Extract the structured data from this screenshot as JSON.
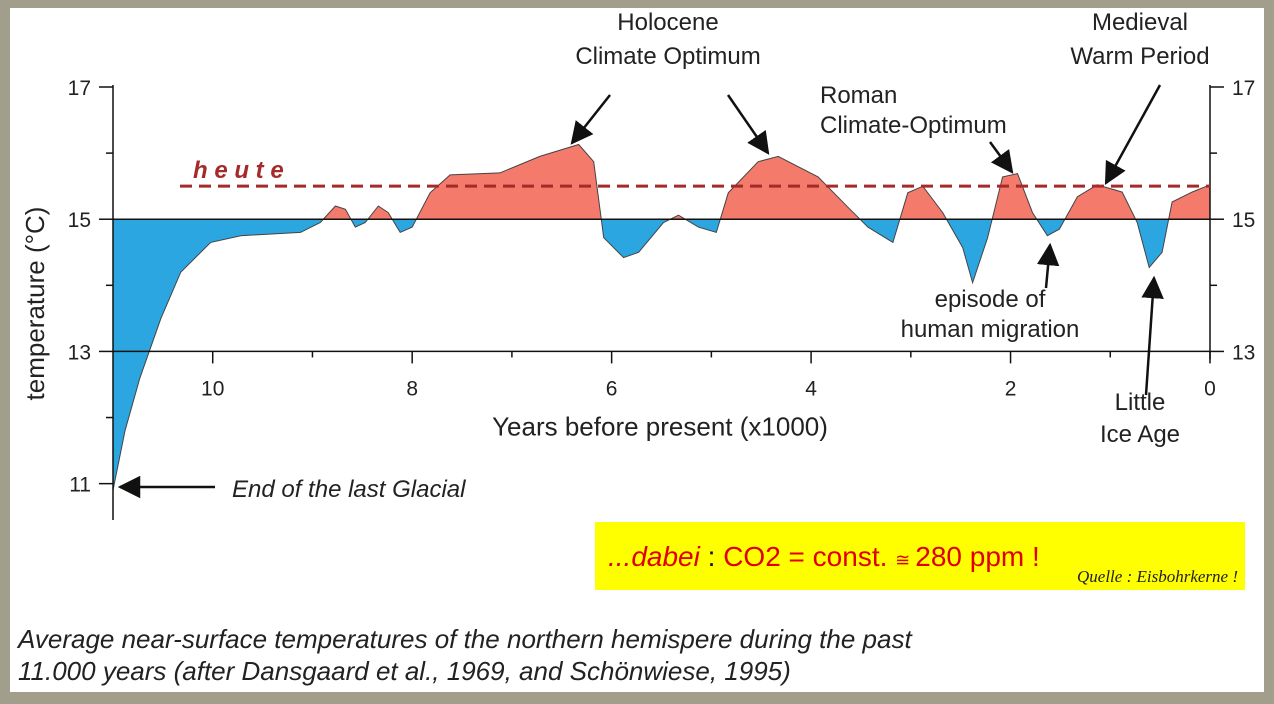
{
  "chart_data": {
    "type": "area",
    "x_label": "Years before present (x1000)",
    "y_label": "temperature (°C)",
    "x": [
      11.0,
      10.88,
      10.73,
      10.52,
      10.32,
      10.02,
      9.72,
      9.12,
      8.92,
      8.77,
      8.67,
      8.57,
      8.47,
      8.34,
      8.24,
      8.12,
      8.0,
      7.82,
      7.62,
      7.12,
      6.72,
      6.33,
      6.18,
      6.08,
      5.88,
      5.73,
      5.48,
      5.33,
      5.13,
      4.95,
      4.83,
      4.53,
      4.33,
      3.93,
      3.63,
      3.43,
      3.18,
      3.03,
      2.88,
      2.68,
      2.48,
      2.38,
      2.23,
      2.08,
      1.93,
      1.78,
      1.63,
      1.51,
      1.33,
      1.13,
      0.88,
      0.73,
      0.61,
      0.48,
      0.38,
      0.18,
      0.0
    ],
    "values": [
      10.9,
      11.8,
      12.6,
      13.5,
      14.2,
      14.65,
      14.75,
      14.8,
      14.95,
      15.2,
      15.15,
      14.88,
      14.95,
      15.2,
      15.1,
      14.8,
      14.88,
      15.4,
      15.67,
      15.7,
      15.95,
      16.13,
      15.87,
      14.72,
      14.42,
      14.5,
      14.95,
      15.06,
      14.88,
      14.8,
      15.4,
      15.87,
      15.95,
      15.64,
      15.18,
      14.88,
      14.65,
      15.4,
      15.5,
      15.1,
      14.57,
      14.04,
      14.72,
      15.64,
      15.69,
      15.1,
      14.75,
      14.85,
      15.34,
      15.52,
      15.41,
      14.95,
      14.27,
      14.5,
      15.26,
      15.41,
      15.52
    ],
    "baseline": 15,
    "fill_above": "#f47a6c",
    "fill_below": "#2ba6e0",
    "xlim": [
      11,
      0
    ],
    "xticks": [
      10,
      8,
      6,
      4,
      2,
      0
    ],
    "x_minor_ticks": [
      9,
      7,
      5,
      3,
      1
    ],
    "ylim": [
      10.45,
      17
    ],
    "yticks": [
      17,
      15,
      13,
      11
    ],
    "y2ticks": [
      17,
      15,
      13
    ],
    "y_minor_ticks": [
      16,
      14,
      12
    ],
    "x_axis_at": 13,
    "reference_line": {
      "value": 15.5,
      "label": "h e u t e",
      "color": "#a52a2a"
    },
    "annotations": [
      {
        "text": [
          "Holocene",
          "Climate Optimum"
        ]
      },
      {
        "text": [
          "Roman",
          "Climate-Optimum"
        ]
      },
      {
        "text": [
          "Medieval",
          "Warm Period"
        ]
      },
      {
        "text": [
          "episode of",
          "human migration"
        ]
      },
      {
        "text": [
          "Little",
          "Ice Age"
        ]
      },
      {
        "text": [
          "End of the last Glacial"
        ]
      }
    ],
    "note": {
      "parts": [
        "...dabei",
        " : ",
        " CO2 = const. ",
        " ≅ ",
        " 280 ppm !"
      ],
      "source": "Quelle : Eisbohrkerne !"
    },
    "caption": [
      "Average near-surface temperatures of the northern hemispere during the past",
      "11.000 years (after Dansgaard et al., 1969, and Schönwiese, 1995)"
    ]
  }
}
